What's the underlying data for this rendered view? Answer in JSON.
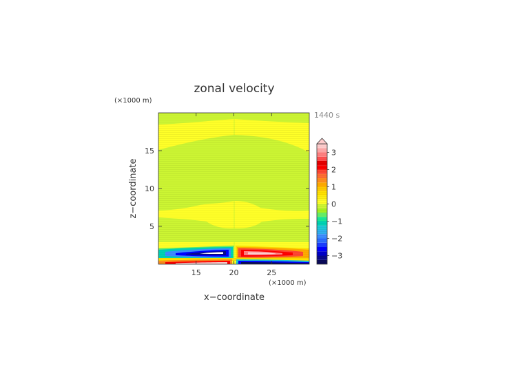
{
  "chart_data": {
    "type": "heatmap",
    "title": "zonal velocity",
    "xlabel": "x−coordinate",
    "ylabel": "z−coordinate",
    "x_unit": "(×1000 m)",
    "y_unit": "(×1000 m)",
    "time_label": "1440 s",
    "xlim": [
      10,
      30
    ],
    "ylim": [
      0,
      20
    ],
    "x_ticks": [
      15,
      20,
      25
    ],
    "y_ticks": [
      5,
      10,
      15
    ],
    "colorbar": {
      "levels": [
        -3.5,
        -3.25,
        -3,
        -2.75,
        -2.5,
        -2.25,
        -2,
        -1.75,
        -1.5,
        -1.25,
        -1,
        -0.75,
        -0.5,
        -0.25,
        0,
        0.25,
        0.5,
        0.75,
        1,
        1.25,
        1.5,
        1.75,
        2,
        2.25,
        2.5,
        2.75,
        3,
        3.25,
        3.5
      ],
      "colors": [
        "#0a0a5a",
        "#0a0a8c",
        "#0000c8",
        "#0000ff",
        "#1a3cff",
        "#2b6cff",
        "#3d8cff",
        "#2fb0f0",
        "#1ec8d8",
        "#00d2b4",
        "#19e696",
        "#66ee66",
        "#a6f020",
        "#ccf533",
        "#ffff28",
        "#ffef10",
        "#ffe000",
        "#ffc800",
        "#ffaa00",
        "#ff8c1e",
        "#ff6e32",
        "#ff4632",
        "#ff0000",
        "#e60000",
        "#ff5050",
        "#ff8080",
        "#ffa8a8",
        "#ffcccc"
      ],
      "tick_labels": [
        "3",
        "2",
        "1",
        "0",
        "−1",
        "−2",
        "−3"
      ],
      "tick_values": [
        3,
        2,
        1,
        0,
        -1,
        -2,
        -3
      ],
      "extend": "max"
    },
    "regions": [
      {
        "name": "background-band-yellow",
        "value": 0.1
      },
      {
        "name": "band-green",
        "value": -0.1
      },
      {
        "name": "near-surface-band",
        "value": 0.4
      },
      {
        "name": "negative-jet",
        "x_range": [
          11,
          19.5
        ],
        "z_range": [
          0.8,
          2.3
        ],
        "min_value": -3.3
      },
      {
        "name": "positive-jet",
        "x_range": [
          20.5,
          29
        ],
        "z_range": [
          0.8,
          2.3
        ],
        "max_value": 3.3
      },
      {
        "name": "surface-positive-layer",
        "x_range": [
          10,
          19.5
        ],
        "z_range": [
          0,
          0.6
        ],
        "max_value": 2.5
      },
      {
        "name": "surface-negative-layer",
        "x_range": [
          20.5,
          30
        ],
        "z_range": [
          0,
          0.6
        ],
        "min_value": -3
      }
    ]
  }
}
